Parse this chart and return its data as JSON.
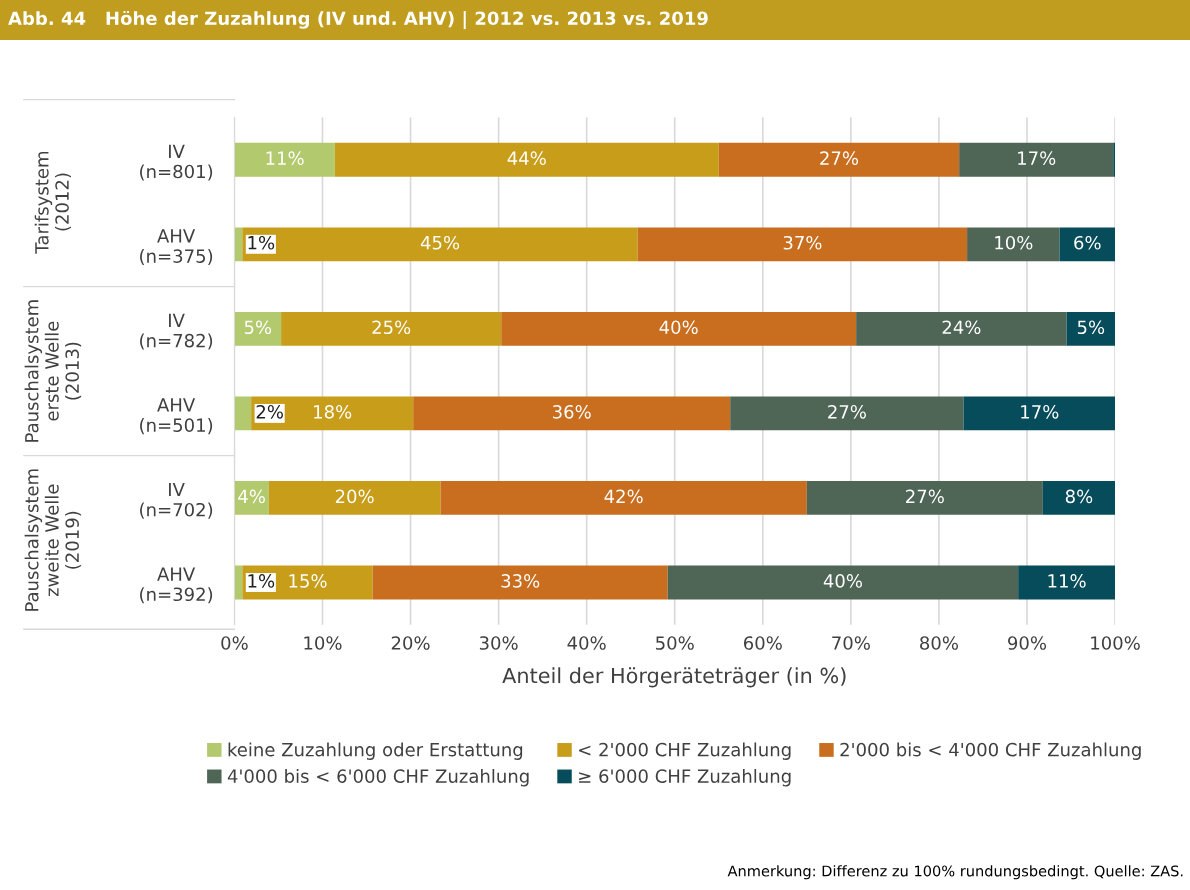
{
  "chart_data": {
    "type": "bar",
    "orientation": "horizontal",
    "stacked": true,
    "title": "Abb. 44   Höhe der Zuzahlung (IV und. AHV) | 2012 vs. 2013 vs. 2019",
    "categories": [
      "IV\n(n=801)",
      "AHV\n(n=375)",
      "IV\n(n=782)",
      "AHV\n(n=501)",
      "IV\n(n=702)",
      "AHV\n(n=392)"
    ],
    "series": [
      {
        "name": "keine Zuzahlung oder Erstattung",
        "color": "#b3c96e",
        "values": [
          11.4,
          0.9,
          5.3,
          1.9,
          3.9,
          0.9
        ],
        "value_labels": [
          "11%",
          "1%",
          "5%",
          "2%",
          "4%",
          "1%"
        ]
      },
      {
        "name": "< 2'000 CHF Zuzahlung",
        "color": "#c89d1a",
        "values": [
          43.6,
          44.9,
          25.0,
          18.4,
          19.5,
          14.8
        ],
        "value_labels": [
          "44%",
          "45%",
          "25%",
          "18%",
          "20%",
          "15%"
        ]
      },
      {
        "name": "2'000 bis < 4'000 CHF Zuzahlung",
        "color": "#c96e1e",
        "values": [
          27.3,
          37.4,
          40.3,
          36.0,
          41.6,
          33.5
        ],
        "value_labels": [
          "27%",
          "37%",
          "40%",
          "36%",
          "42%",
          "33%"
        ]
      },
      {
        "name": "4'000 bis < 6'000 CHF Zuzahlung",
        "color": "#4f6656",
        "values": [
          17.5,
          10.5,
          23.9,
          26.5,
          26.8,
          39.8
        ],
        "value_labels": [
          "17%",
          "10%",
          "24%",
          "27%",
          "27%",
          "40%"
        ]
      },
      {
        "name": "≥ 6'000 CHF Zuzahlung",
        "color": "#064c5a",
        "values": [
          0.2,
          6.3,
          5.5,
          17.2,
          8.2,
          11.0
        ],
        "value_labels": [
          null,
          "6%",
          "5%",
          "17%",
          "8%",
          "11%"
        ]
      }
    ],
    "xlim": [
      0,
      100
    ],
    "xticks": [
      {
        "value": 0,
        "label": "0%"
      },
      {
        "value": 10,
        "label": "10%"
      },
      {
        "value": 20,
        "label": "20%"
      },
      {
        "value": 30,
        "label": "30%"
      },
      {
        "value": 40,
        "label": "40%"
      },
      {
        "value": 50,
        "label": "50%"
      },
      {
        "value": 60,
        "label": "60%"
      },
      {
        "value": 70,
        "label": "70%"
      },
      {
        "value": 80,
        "label": "80%"
      },
      {
        "value": 90,
        "label": "90%"
      },
      {
        "value": 100,
        "label": "100%"
      }
    ],
    "xlabel": "Anteil der Hörgeräteträger (in %)",
    "grid": "x",
    "legend": "bottom",
    "annotations": [
      "Tarifsystem\n(2012)",
      "Pauschalsystem\nerste Welle\n(2013)",
      "Pauschalsystem\nzweite Welle\n(2019)",
      "Anmerkung: Differenz zu 100% rundungsbedingt. Quelle: ZAS."
    ]
  }
}
